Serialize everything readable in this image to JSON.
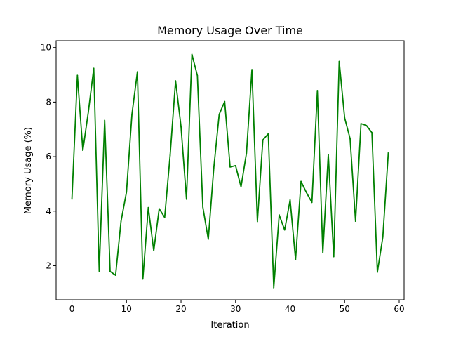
{
  "chart_data": {
    "type": "line",
    "title": "Memory Usage Over Time",
    "xlabel": "Iteration",
    "ylabel": "Memory Usage (%)",
    "xlim": [
      -2.9,
      60.9
    ],
    "ylim": [
      0.75,
      10.25
    ],
    "x_ticks": [
      0,
      10,
      20,
      30,
      40,
      50,
      60
    ],
    "y_ticks": [
      2,
      4,
      6,
      8,
      10
    ],
    "grid": false,
    "legend": "none",
    "line_color": "#008000",
    "series": [
      {
        "x": [
          0,
          1,
          2,
          3,
          4,
          5,
          6,
          7,
          8,
          9,
          10,
          11,
          12,
          13,
          14,
          15,
          16,
          17,
          18,
          19,
          20,
          21,
          22,
          23,
          24,
          25,
          26,
          27,
          28,
          29,
          30,
          31,
          32,
          33,
          34,
          35,
          36,
          37,
          38,
          39,
          40,
          41,
          42,
          43,
          44,
          45,
          46,
          47,
          48,
          49,
          50,
          51,
          52,
          53,
          54,
          55,
          56,
          57,
          58
        ],
        "values": [
          4.45,
          8.98,
          6.23,
          7.63,
          9.24,
          1.8,
          7.33,
          1.79,
          1.65,
          3.63,
          4.7,
          7.55,
          9.11,
          1.51,
          4.13,
          2.55,
          4.09,
          3.77,
          6.05,
          8.78,
          7.1,
          4.44,
          9.75,
          8.97,
          4.15,
          2.97,
          5.57,
          7.55,
          8.02,
          5.62,
          5.67,
          4.89,
          6.13,
          9.19,
          3.62,
          6.61,
          6.84,
          1.19,
          3.86,
          3.31,
          4.41,
          2.23,
          5.09,
          4.68,
          4.32,
          8.42,
          2.47,
          6.07,
          2.33,
          9.49,
          7.42,
          6.66,
          3.63,
          7.21,
          7.14,
          6.88,
          1.76,
          3.05,
          6.13
        ]
      }
    ]
  }
}
